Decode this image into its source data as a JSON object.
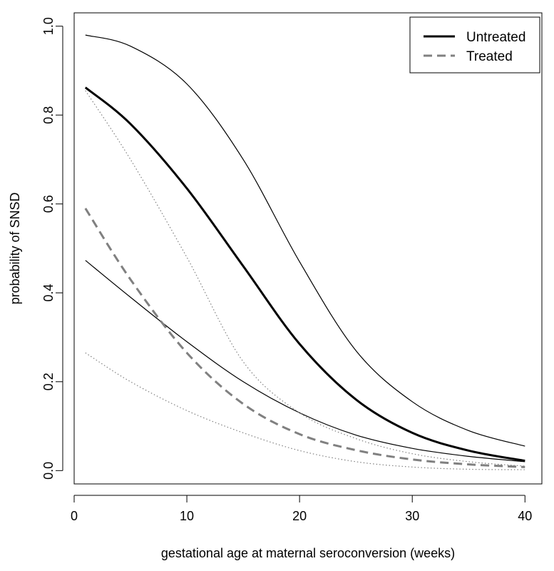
{
  "chart_data": {
    "type": "line",
    "xlabel": "gestational age at maternal seroconversion (weeks)",
    "ylabel": "probability of SNSD",
    "xlim": [
      0,
      41.5
    ],
    "ylim": [
      -0.03,
      1.03
    ],
    "xticks": [
      0,
      10,
      20,
      30,
      40
    ],
    "xtick_labels": [
      "0",
      "10",
      "20",
      "30",
      "40"
    ],
    "yticks": [
      0.0,
      0.2,
      0.4,
      0.6,
      0.8,
      1.0
    ],
    "ytick_labels": [
      "0.0",
      "0.2",
      "0.4",
      "0.6",
      "0.8",
      "1.0"
    ],
    "grid": false,
    "legend": {
      "position": "top-right",
      "entries": [
        {
          "label": "Untreated",
          "style": "solid",
          "color": "#000000"
        },
        {
          "label": "Treated",
          "style": "dashed",
          "color": "#808080"
        }
      ]
    },
    "x": [
      1,
      5,
      10,
      15,
      20,
      25,
      30,
      35,
      40
    ],
    "series": [
      {
        "name": "Untreated",
        "style": "solid",
        "width": 3,
        "color": "#000000",
        "values": [
          0.862,
          0.78,
          0.635,
          0.46,
          0.285,
          0.16,
          0.085,
          0.045,
          0.022
        ]
      },
      {
        "style": "solid",
        "width": 1.2,
        "color": "#000000",
        "values": [
          0.98,
          0.955,
          0.87,
          0.7,
          0.47,
          0.27,
          0.155,
          0.09,
          0.055
        ]
      },
      {
        "style": "solid",
        "width": 1.2,
        "color": "#000000",
        "values": [
          0.473,
          0.39,
          0.29,
          0.2,
          0.13,
          0.08,
          0.05,
          0.032,
          0.02
        ]
      },
      {
        "name": "Treated",
        "style": "dashed",
        "width": 3,
        "color": "#808080",
        "values": [
          0.59,
          0.43,
          0.265,
          0.15,
          0.082,
          0.046,
          0.025,
          0.014,
          0.008
        ]
      },
      {
        "style": "dotted",
        "width": 1.2,
        "color": "#808080",
        "values": [
          0.855,
          0.7,
          0.48,
          0.245,
          0.13,
          0.072,
          0.038,
          0.02,
          0.01
        ]
      },
      {
        "style": "dotted",
        "width": 1.2,
        "color": "#808080",
        "values": [
          0.265,
          0.2,
          0.135,
          0.085,
          0.045,
          0.02,
          0.008,
          0.003,
          0.002
        ]
      }
    ]
  }
}
